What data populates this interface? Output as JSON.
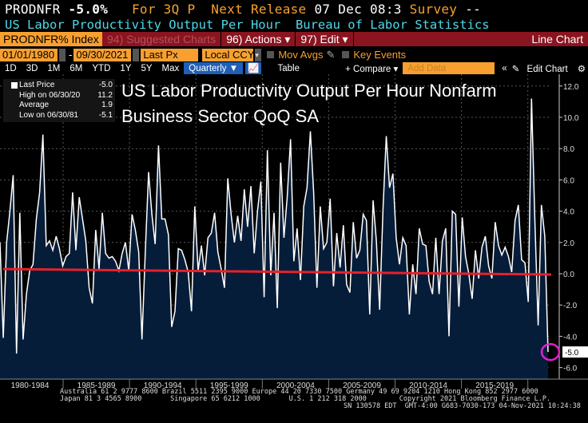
{
  "header": {
    "ticker": "PRODNFR",
    "change": "-5.0%",
    "for_label": "For 3Q P",
    "next_release_label": "Next Release",
    "next_release_value": "07 Dec 08:3",
    "survey_label": "Survey",
    "survey_value": "--",
    "description": "US Labor Productivity Output Per Hour  Bureau of Labor Statistics"
  },
  "toolbar": {
    "index": "PRODNFR% Index",
    "suggested": "94) Suggested Charts",
    "actions": "96) Actions ▾",
    "edit": "97) Edit ▾",
    "chart_type": "Line Chart"
  },
  "range": {
    "start": "01/01/1980",
    "end": "09/30/2021",
    "field": "Last Px",
    "currency": "Local CCY",
    "mov_avgs": "Mov Avgs",
    "key_events": "Key Events"
  },
  "periods": [
    "1D",
    "3D",
    "1M",
    "6M",
    "YTD",
    "1Y",
    "5Y",
    "Max"
  ],
  "frequency": "Quarterly ▼",
  "table": "Table",
  "compare": "+ Compare ▾",
  "add_data_placeholder": "Add Data",
  "edit_chart": "Edit Chart",
  "legend": [
    {
      "label": "Last Price",
      "value": "-5.0"
    },
    {
      "label": "High on 06/30/20",
      "value": "11.2"
    },
    {
      "label": "Average",
      "value": "1.9"
    },
    {
      "label": "Low on 06/30/81",
      "value": "-5.1"
    }
  ],
  "colors": {
    "line": "#ffffff",
    "fill": "#061d3a",
    "trend": "#e8202a",
    "highlight": "#e020d0"
  },
  "footer": {
    "line1": "Australia 61 2 9777 8600 Brazil 5511 2395 9000 Europe 44 20 7330 7500 Germany 49 69 9204 1210 Hong Kong 852 2977 6000",
    "line2": "Japan 81 3 4565 8900       Singapore 65 6212 1000       U.S. 1 212 318 2000        Copyright 2021 Bloomberg Finance L.P.",
    "line3": "SN 130578 EDT  GMT-4:00 G683-7030-173 04-Nov-2021 10:24:38"
  },
  "chart_data": {
    "type": "area",
    "title": "US Labor Productivity Output Per Hour Nonfarm Business Sector QoQ SA",
    "x_start": "1980 Q1",
    "x_end": "2021 Q3",
    "frequency": "quarterly",
    "ylim": [
      -6,
      12
    ],
    "yticks": [
      "12.0",
      "10.0",
      "8.0",
      "6.0",
      "4.0",
      "2.0",
      "0.0",
      "-2.0",
      "-4.0",
      "-6.0"
    ],
    "xlabels": [
      "1980-1984",
      "1985-1989",
      "1990-1994",
      "1995-1999",
      "2000-2004",
      "2005-2009",
      "2010-2014",
      "2015-2019"
    ],
    "last_value_label": "-5.0",
    "trend": [
      0.3,
      -0.05
    ],
    "values": [
      2.0,
      -4.1,
      2.0,
      4.0,
      6.3,
      -5.1,
      3.9,
      -4.2,
      -1.3,
      0.2,
      0.6,
      3.5,
      5.2,
      8.9,
      1.8,
      2.1,
      1.5,
      2.4,
      1.6,
      0.5,
      1.1,
      1.3,
      5.2,
      1.5,
      4.9,
      3.5,
      2.1,
      -0.9,
      -1.9,
      2.8,
      0.3,
      3.9,
      1.3,
      1.0,
      1.1,
      0.8,
      0.2,
      1.3,
      2.0,
      0.2,
      3.8,
      2.8,
      1.4,
      -4.2,
      1.3,
      6.5,
      3.8,
      1.9,
      8.2,
      3.5,
      3.5,
      2.5,
      -3.4,
      -2.4,
      1.6,
      1.5,
      0.9,
      0.1,
      -2.4,
      4.3,
      0.2,
      1.8,
      -0.1,
      2.3,
      2.6,
      3.9,
      1.4,
      0.3,
      -0.9,
      6.1,
      3.8,
      2.0,
      3.7,
      2.1,
      5.4,
      3.0,
      5.6,
      1.3,
      4.0,
      5.9,
      -1.5,
      7.9,
      -0.1,
      3.9,
      -2.2,
      7.1,
      2.3,
      4.9,
      8.6,
      0.8,
      2.9,
      -0.4,
      4.3,
      5.5,
      9.1,
      5.2,
      -0.9,
      4.3,
      1.6,
      2.0,
      4.8,
      -0.8,
      2.6,
      0.4,
      3.1,
      -0.7,
      -1.2,
      3.3,
      1.0,
      1.5,
      3.8,
      3.4,
      -2.6,
      4.7,
      2.1,
      -2.3,
      4.1,
      8.8,
      5.5,
      6.4,
      2.3,
      0.6,
      2.3,
      1.8,
      -2.6,
      0.6,
      -1.3,
      2.9,
      1.9,
      1.8,
      -0.5,
      -1.3,
      2.3,
      -1.3,
      2.1,
      2.9,
      -4.0,
      4.0,
      3.8,
      -2.1,
      3.6,
      1.1,
      0.0,
      -1.6,
      1.5,
      -0.3,
      1.7,
      2.4,
      0.5,
      -0.3,
      3.3,
      1.8,
      1.2,
      1.7,
      1.1,
      0.1,
      3.4,
      4.4,
      0.9,
      0.7,
      -1.8,
      11.2,
      3.4,
      -3.3,
      4.4,
      2.4,
      -5.0
    ]
  }
}
